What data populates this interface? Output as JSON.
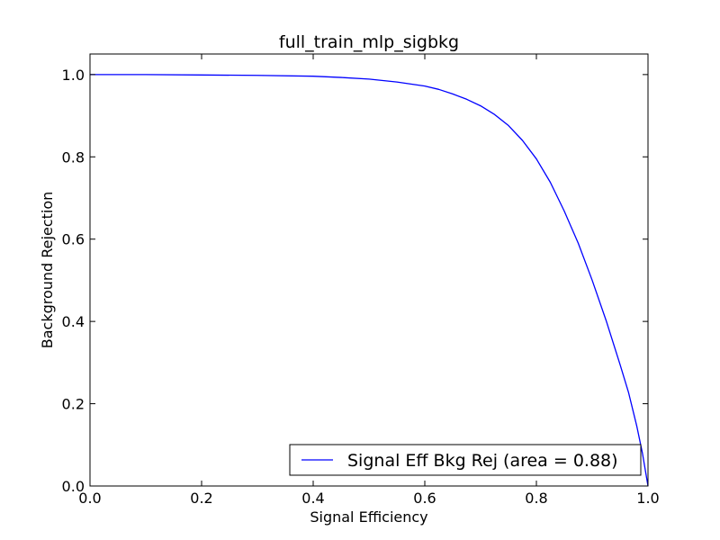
{
  "chart_data": {
    "type": "line",
    "title": "full_train_mlp_sigbkg",
    "xlabel": "Signal Efficiency",
    "ylabel": "Background Rejection",
    "xlim": [
      0.0,
      1.0
    ],
    "ylim": [
      0.0,
      1.05
    ],
    "xticks": [
      "0.0",
      "0.2",
      "0.4",
      "0.6",
      "0.8",
      "1.0"
    ],
    "yticks": [
      "0.0",
      "0.2",
      "0.4",
      "0.6",
      "0.8",
      "1.0"
    ],
    "grid": false,
    "legend_position": "lower-right",
    "series": [
      {
        "name": "Signal Eff Bkg Rej (area = 0.88)",
        "color": "#0000ff",
        "x": [
          0.0,
          0.1,
          0.2,
          0.3,
          0.4,
          0.45,
          0.5,
          0.55,
          0.6,
          0.625,
          0.65,
          0.675,
          0.7,
          0.725,
          0.75,
          0.775,
          0.8,
          0.825,
          0.85,
          0.875,
          0.9,
          0.925,
          0.95,
          0.965,
          0.98,
          0.99,
          1.0
        ],
        "y": [
          1.0,
          1.0,
          0.999,
          0.998,
          0.996,
          0.993,
          0.989,
          0.982,
          0.972,
          0.964,
          0.953,
          0.94,
          0.924,
          0.903,
          0.876,
          0.84,
          0.795,
          0.738,
          0.668,
          0.59,
          0.5,
          0.402,
          0.295,
          0.228,
          0.145,
          0.08,
          0.0
        ]
      }
    ]
  }
}
